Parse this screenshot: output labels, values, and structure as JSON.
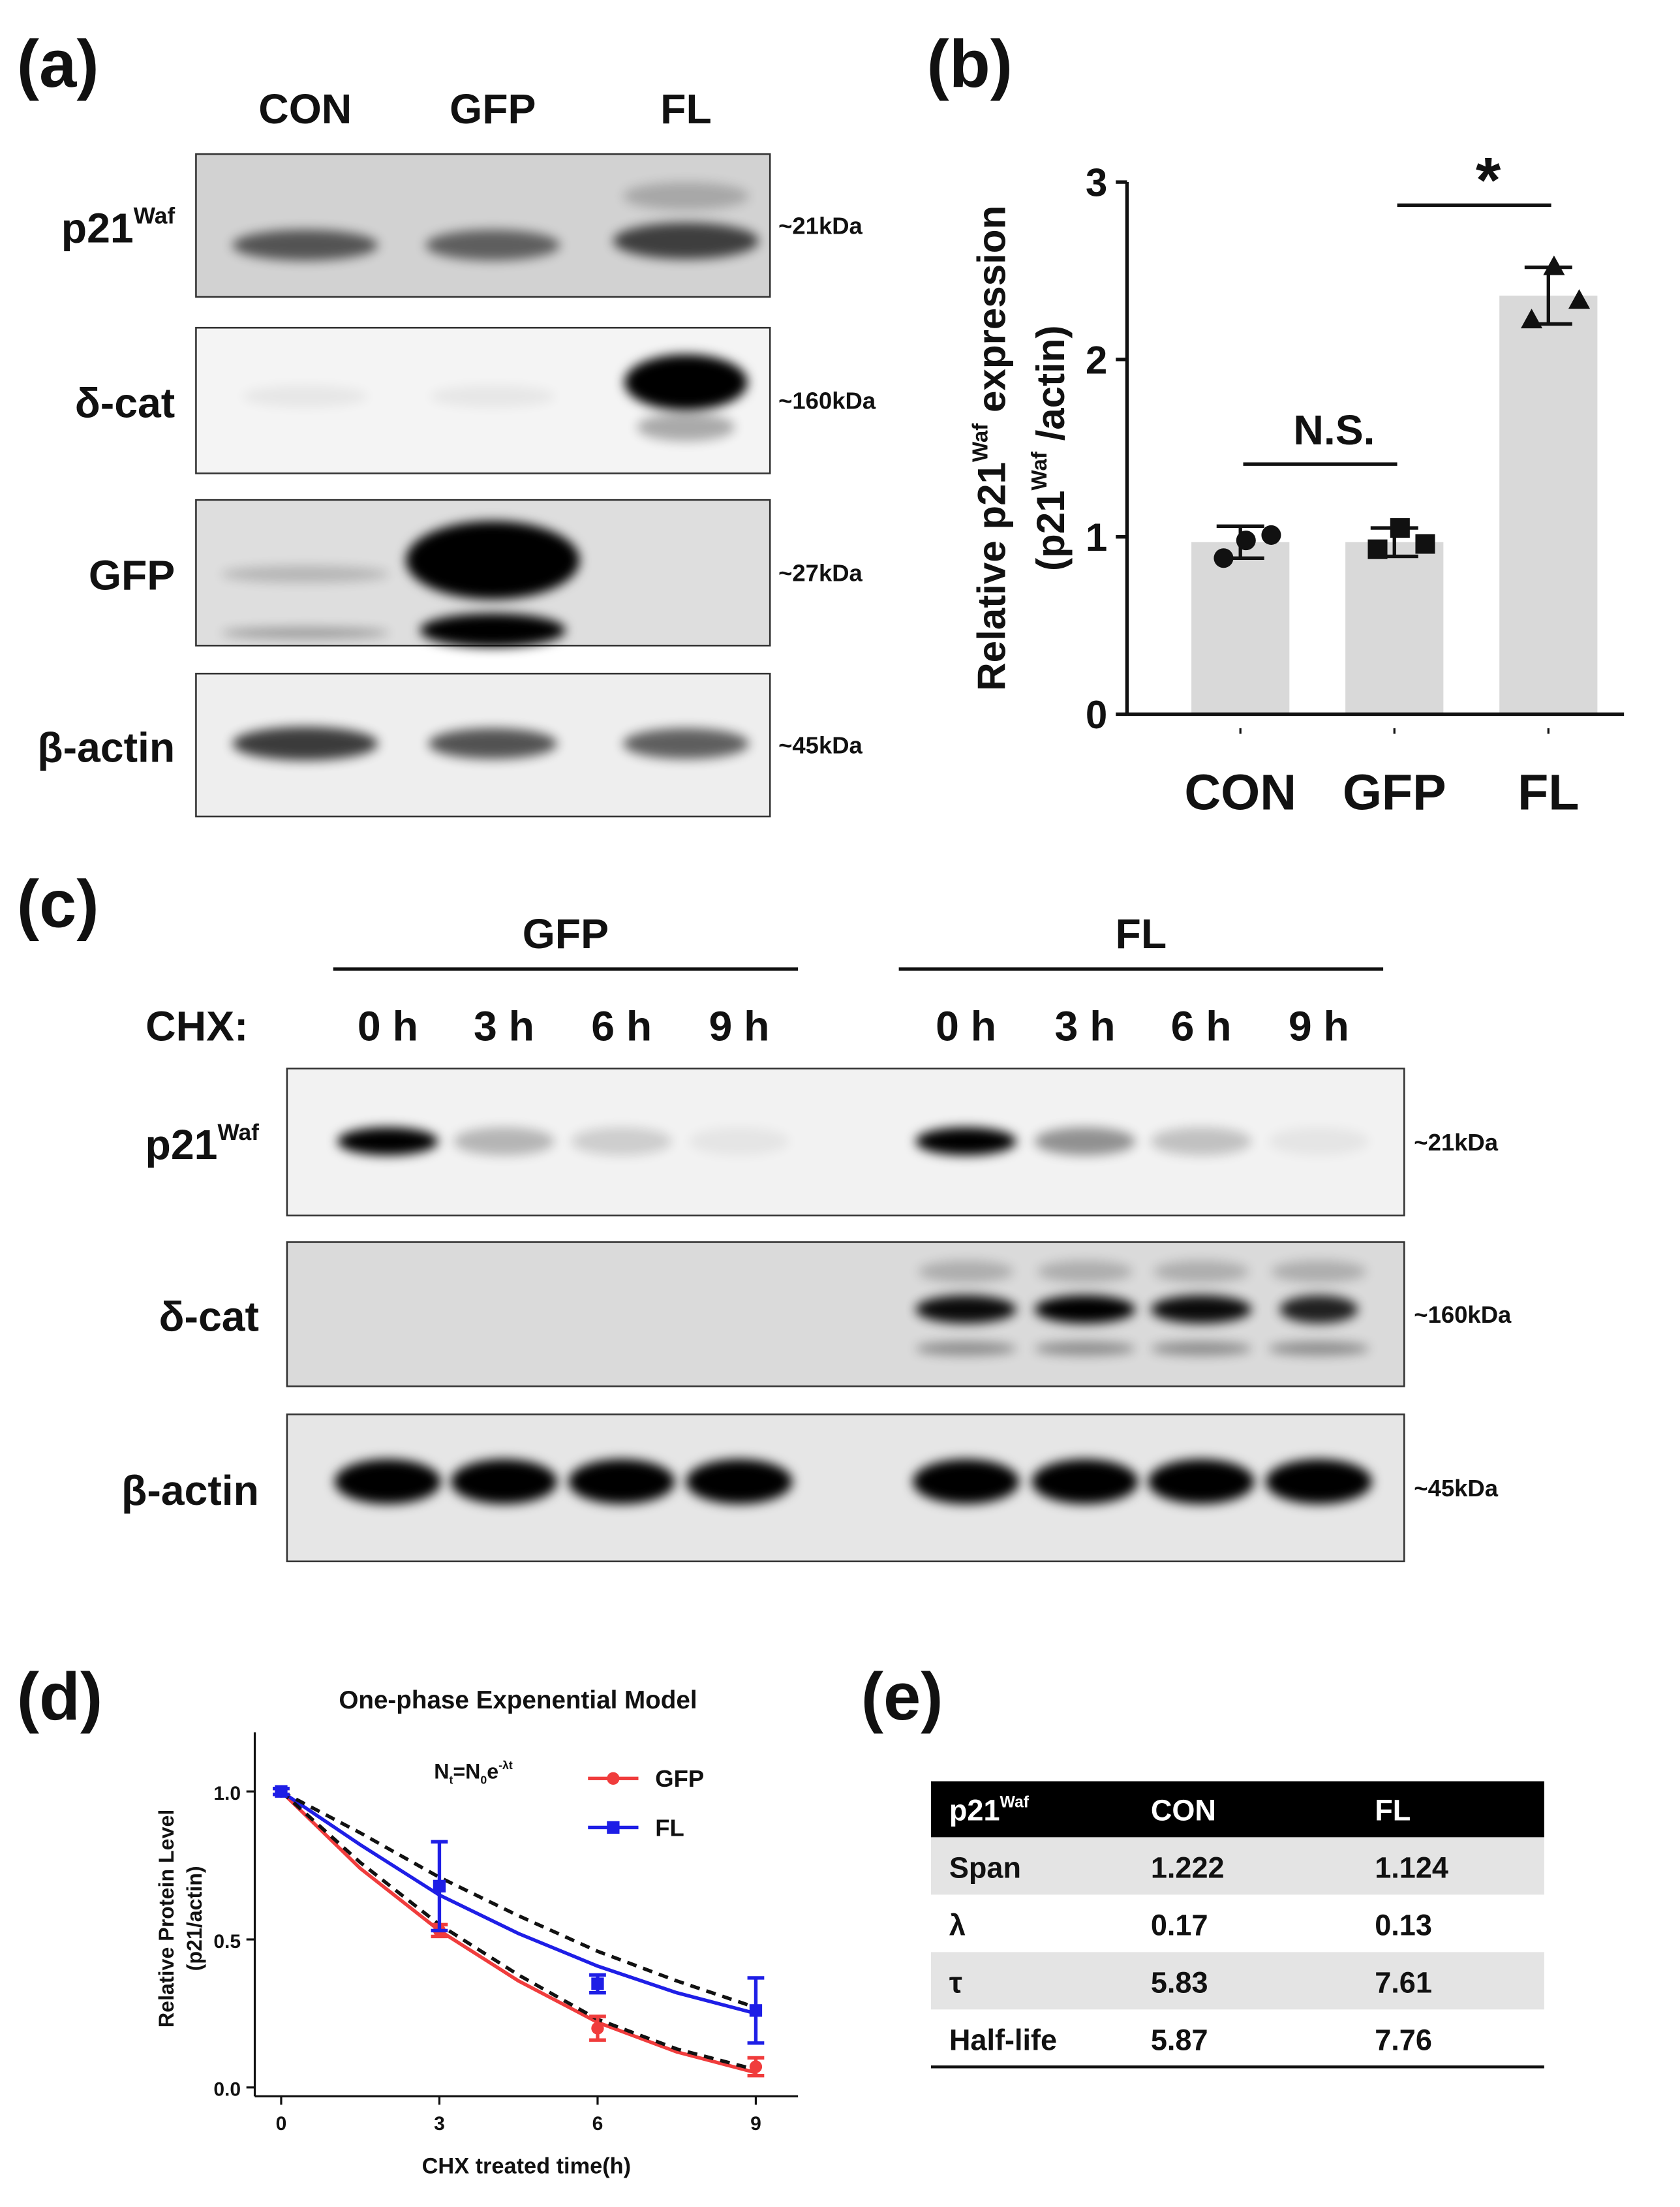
{
  "panels": {
    "a": "(a)",
    "b": "(b)",
    "c": "(c)",
    "d": "(d)",
    "e": "(e)"
  },
  "blot_a": {
    "lanes": [
      "CON",
      "GFP",
      "FL"
    ],
    "rows": [
      {
        "label": [
          {
            "text": "p21"
          },
          {
            "text": "Waf",
            "shift": "super"
          }
        ],
        "size": "~21kDa"
      },
      {
        "label": [
          {
            "text": "δ-cat"
          }
        ],
        "size": "~160kDa"
      },
      {
        "label": [
          {
            "text": "GFP"
          }
        ],
        "size": "~27kDa"
      },
      {
        "label": [
          {
            "text": "β-actin"
          }
        ],
        "size": "~45kDa"
      }
    ]
  },
  "blot_c": {
    "groups": [
      "GFP",
      "FL"
    ],
    "treatment": "CHX:",
    "times": [
      "0 h",
      "3 h",
      "6 h",
      "9 h",
      "0 h",
      "3 h",
      "6 h",
      "9 h"
    ],
    "rows": [
      {
        "label": [
          {
            "text": "p21"
          },
          {
            "text": "Waf",
            "shift": "super"
          }
        ],
        "size": "~21kDa"
      },
      {
        "label": [
          {
            "text": "δ-cat"
          }
        ],
        "size": "~160kDa"
      },
      {
        "label": [
          {
            "text": "β-actin"
          }
        ],
        "size": "~45kDa"
      }
    ]
  },
  "chart_data": [
    {
      "type": "bar",
      "categories": [
        "CON",
        "GFP",
        "FL"
      ],
      "values": [
        0.97,
        0.97,
        2.36
      ],
      "errors": [
        0.09,
        0.08,
        0.16
      ],
      "points": [
        [
          0.88,
          0.98,
          1.01
        ],
        [
          0.93,
          1.05,
          0.96
        ],
        [
          2.22,
          2.52,
          2.33
        ]
      ],
      "markers": [
        "circle",
        "square",
        "triangle"
      ],
      "color": "#d9d9d9",
      "ylim": [
        0,
        3
      ],
      "yticks": [
        0,
        1,
        2,
        3
      ],
      "ylabel": [
        [
          {
            "text": "Relative p21"
          },
          {
            "text": "Waf",
            "shift": "super"
          },
          {
            "text": " expression"
          }
        ],
        [
          {
            "text": "(p21"
          },
          {
            "text": "Waf",
            "shift": "super"
          },
          {
            "text": " /actin)"
          }
        ]
      ],
      "annotations": [
        "N.S.",
        "*"
      ]
    },
    {
      "type": "line",
      "title": "One-phase Expenential Model",
      "xlabel": "CHX treated time(h)",
      "ylabel": [
        "Relative Protein Level",
        "(p21/actin)"
      ],
      "x": [
        0,
        3,
        6,
        9
      ],
      "series": [
        {
          "name": "GFP",
          "color": "#f03c3c",
          "marker": "circle",
          "values": [
            1.0,
            0.53,
            0.2,
            0.07
          ],
          "errors": [
            0.01,
            0.02,
            0.04,
            0.03
          ]
        },
        {
          "name": "FL",
          "color": "#1e1ee6",
          "marker": "square",
          "values": [
            1.0,
            0.68,
            0.35,
            0.26
          ],
          "errors": [
            0.01,
            0.15,
            0.03,
            0.11
          ]
        }
      ],
      "fits": {
        "x": [
          0,
          1.5,
          3,
          4.5,
          6,
          7.5,
          9
        ],
        "curves": [
          {
            "color": "#f03c3c",
            "style": "solid",
            "values": [
              1.0,
              0.74,
              0.53,
              0.36,
              0.22,
              0.12,
              0.05
            ]
          },
          {
            "color": "#1e1ee6",
            "style": "solid",
            "values": [
              1.0,
              0.82,
              0.65,
              0.52,
              0.41,
              0.32,
              0.25
            ]
          },
          {
            "color": "#111111",
            "style": "dashed",
            "values": [
              1.0,
              0.86,
              0.71,
              0.58,
              0.46,
              0.36,
              0.27
            ]
          },
          {
            "color": "#111111",
            "style": "dashed",
            "values": [
              1.0,
              0.76,
              0.55,
              0.38,
              0.23,
              0.13,
              0.06
            ]
          }
        ]
      },
      "annotation": [
        {
          "text": "N"
        },
        {
          "text": "t",
          "shift": "sub"
        },
        {
          "text": "=N"
        },
        {
          "text": "0",
          "shift": "sub"
        },
        {
          "text": "e"
        },
        {
          "text": "-λt",
          "shift": "super"
        }
      ],
      "legend": "upper right",
      "xlim": [
        -0.5,
        9.8
      ],
      "ylim": [
        -0.03,
        1.2
      ],
      "xticks": [
        0,
        3,
        6,
        9
      ],
      "yticks": [
        {
          "value": 0,
          "label": "0.0"
        },
        {
          "value": 0.5,
          "label": "0.5"
        },
        {
          "value": 1,
          "label": "1.0"
        }
      ]
    }
  ],
  "table": {
    "header": [
      [
        {
          "text": "p21"
        },
        {
          "text": "Waf",
          "shift": "super"
        }
      ],
      [
        {
          "text": "CON"
        }
      ],
      [
        {
          "text": "FL"
        }
      ]
    ],
    "rows": [
      [
        "Span",
        "1.222",
        "1.124"
      ],
      [
        "λ",
        "0.17",
        "0.13"
      ],
      [
        "τ",
        "5.83",
        "7.61"
      ],
      [
        "Half-life",
        "5.87",
        "7.76"
      ]
    ]
  }
}
